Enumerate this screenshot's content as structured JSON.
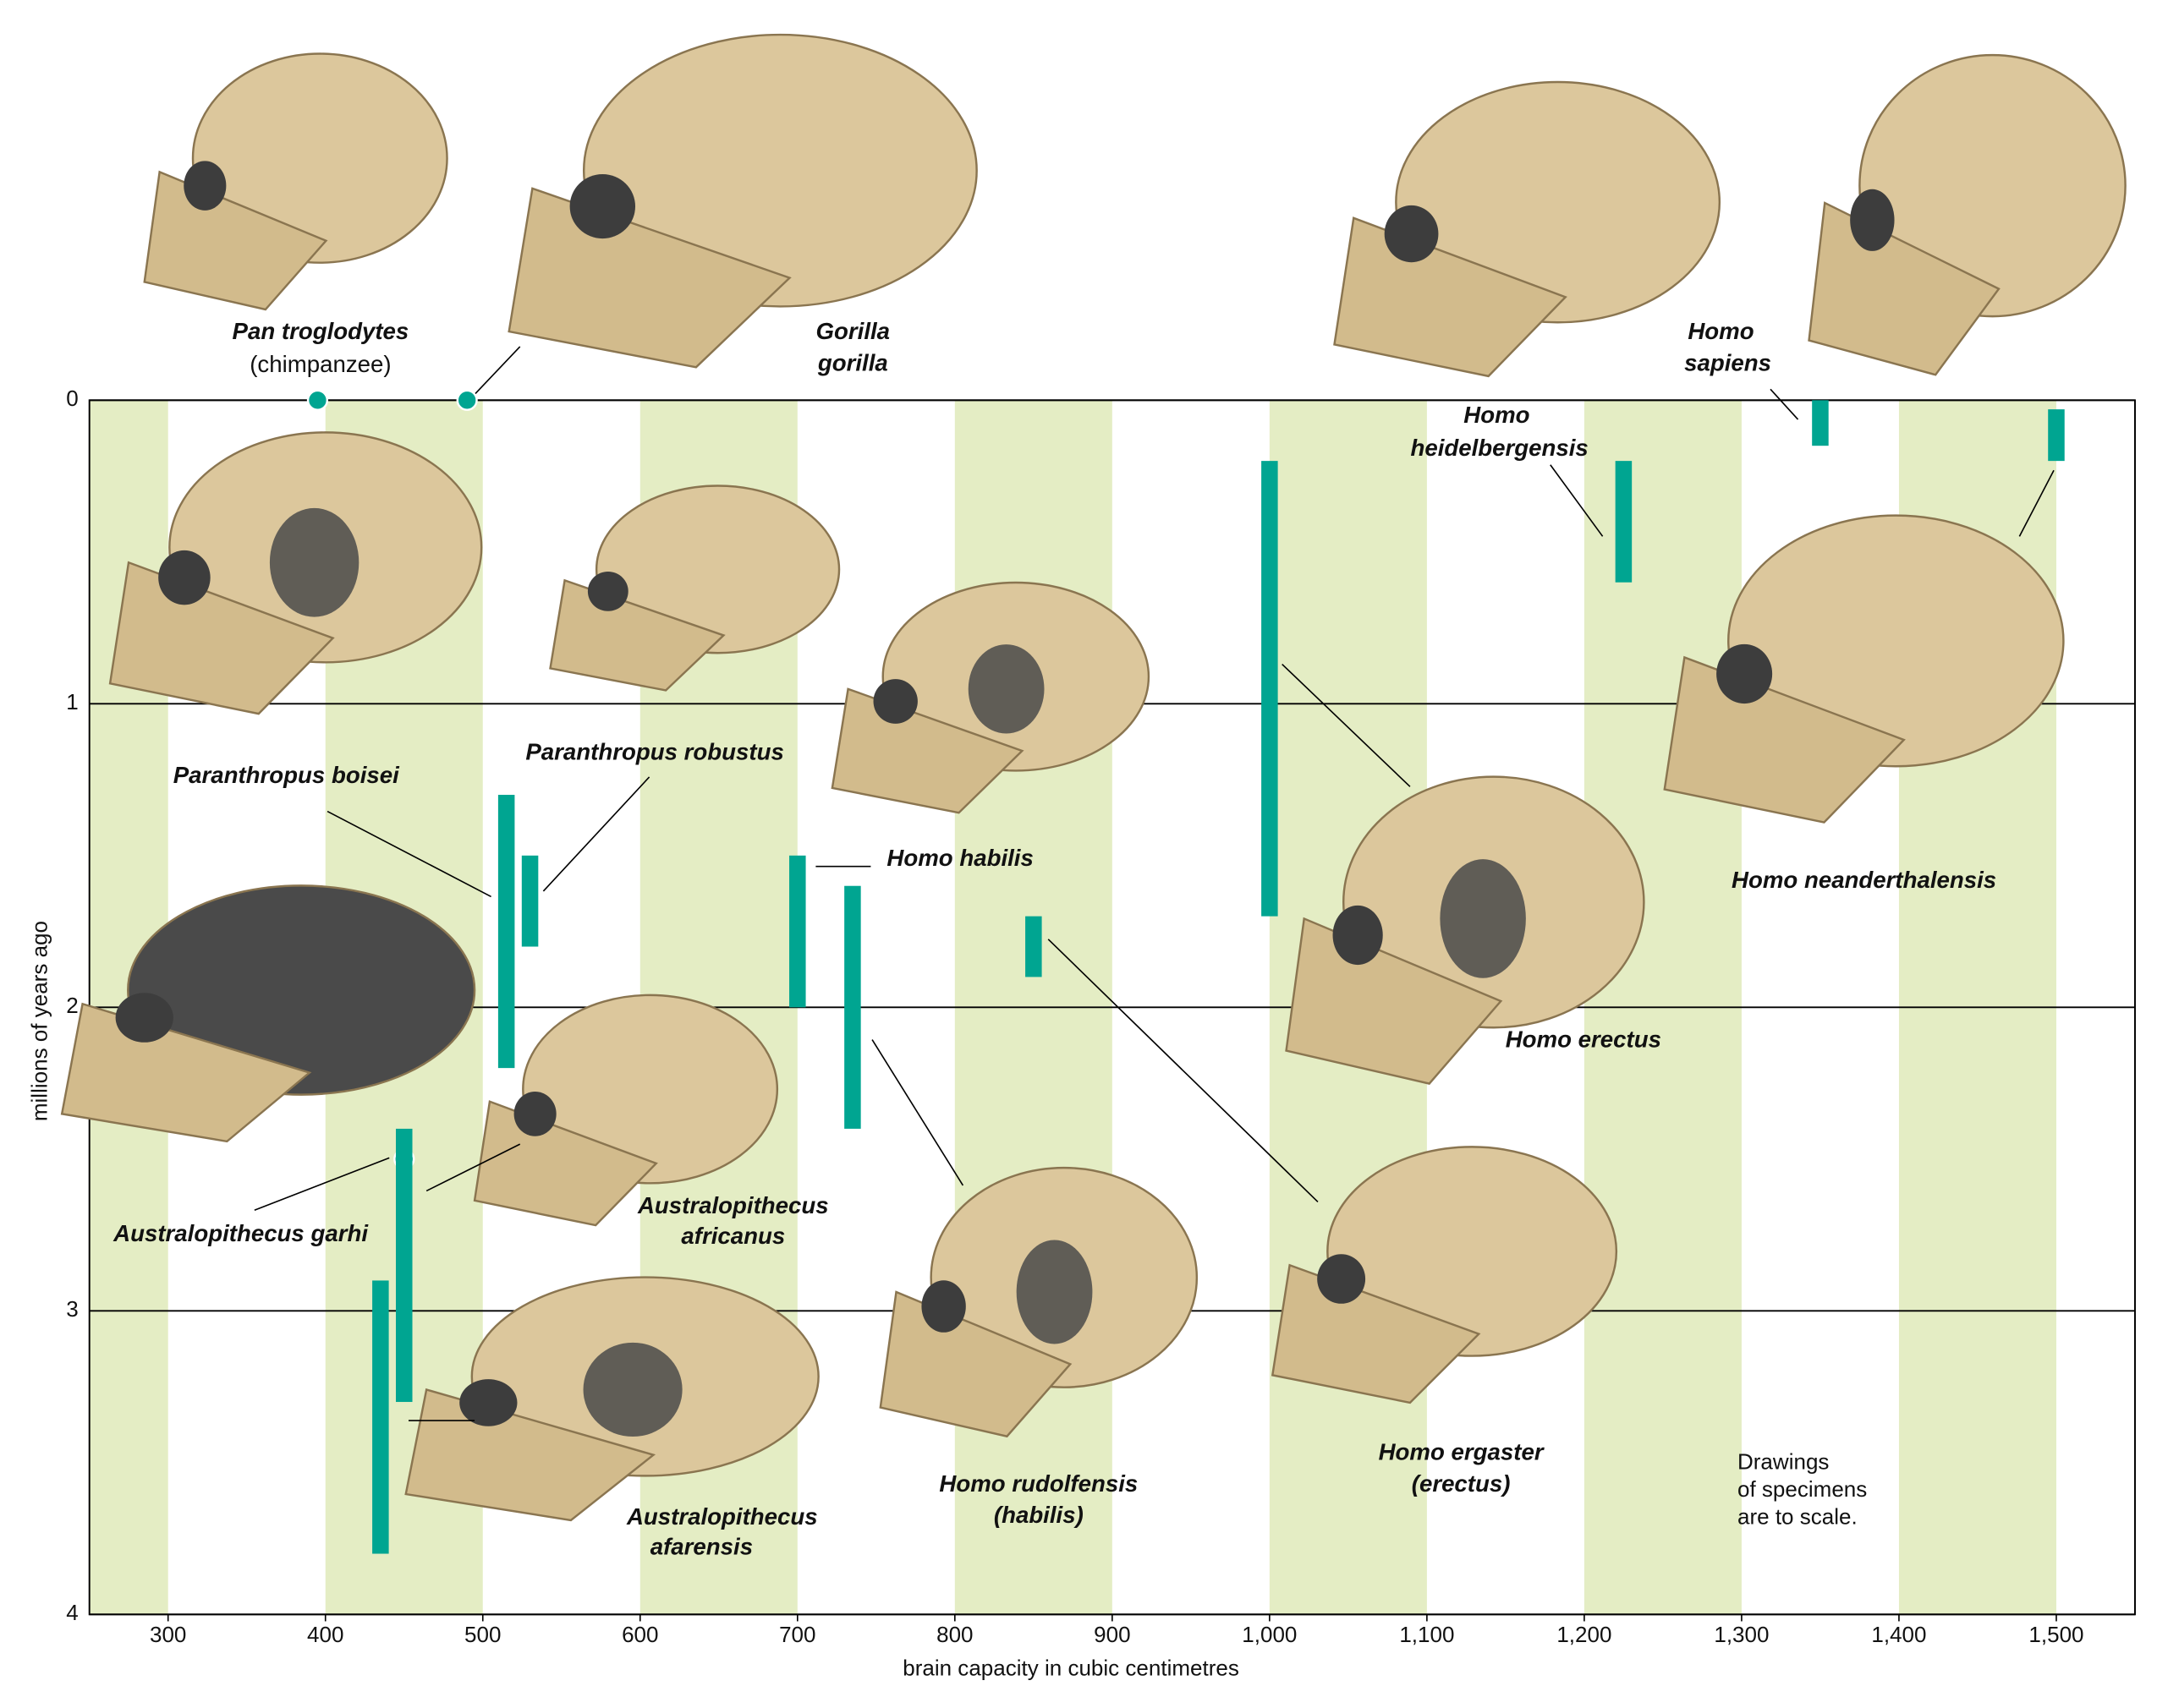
{
  "chart_data": {
    "type": "range",
    "x_label": "brain capacity in cubic centimetres",
    "y_label": "millions of years ago",
    "note": [
      "Drawings",
      "of specimens",
      "are to scale."
    ],
    "xlim": [
      250,
      1550
    ],
    "xticks": [
      300,
      400,
      500,
      600,
      700,
      800,
      900,
      {
        "value": 1000,
        "label": "1,000"
      },
      {
        "value": 1100,
        "label": "1,100"
      },
      {
        "value": 1200,
        "label": "1,200"
      },
      {
        "value": 1300,
        "label": "1,300"
      },
      {
        "value": 1400,
        "label": "1,400"
      },
      {
        "value": 1500,
        "label": "1,500"
      }
    ],
    "ylim": [
      0,
      4
    ],
    "y_inverted": true,
    "yticks": [
      0,
      1,
      2,
      3,
      4
    ],
    "grid": true,
    "color": "#00a591",
    "band_color": "#e4edc4",
    "items": [
      {
        "label": [
          "Pan troglodytes",
          "(chimpanzee)"
        ],
        "x": 395,
        "y": 0
      },
      {
        "label": [
          "Gorilla",
          "gorilla"
        ],
        "x": 490,
        "y": 0
      },
      {
        "label": [
          "Australopithecus garhi"
        ],
        "x": 450,
        "y": 2.5
      },
      {
        "label": [
          "Australopithecus",
          "afarensis"
        ],
        "x": 435,
        "y_start": 2.9,
        "y_end": 3.8
      },
      {
        "label": [
          "Australopithecus",
          "africanus"
        ],
        "x": 450,
        "y_start": 2.4,
        "y_end": 3.3
      },
      {
        "label": [
          "Paranthropus boisei"
        ],
        "x": 515,
        "y_start": 1.3,
        "y_end": 2.2
      },
      {
        "label": [
          "Paranthropus robustus"
        ],
        "x": 530,
        "y_start": 1.5,
        "y_end": 1.8
      },
      {
        "label": [
          "Homo habilis"
        ],
        "x": 700,
        "y_start": 1.5,
        "y_end": 2.0
      },
      {
        "label": [
          "Homo rudolfensis",
          "(habilis)"
        ],
        "x": 735,
        "y_start": 1.6,
        "y_end": 2.4
      },
      {
        "label": [
          "Homo ergaster",
          "(erectus)"
        ],
        "x": 850,
        "y_start": 1.7,
        "y_end": 1.9
      },
      {
        "label": [
          "Homo erectus"
        ],
        "x": 1000,
        "y_start": 0.2,
        "y_end": 1.7
      },
      {
        "label": [
          "Homo",
          "heidelbergensis"
        ],
        "x": 1225,
        "y_start": 0.2,
        "y_end": 0.6
      },
      {
        "label": [
          "Homo",
          "sapiens"
        ],
        "x": 1350,
        "y_start": 0,
        "y_end": 0.15
      },
      {
        "label": [
          "Homo neanderthalensis"
        ],
        "x": 1500,
        "y_start": 0.03,
        "y_end": 0.2
      }
    ]
  }
}
